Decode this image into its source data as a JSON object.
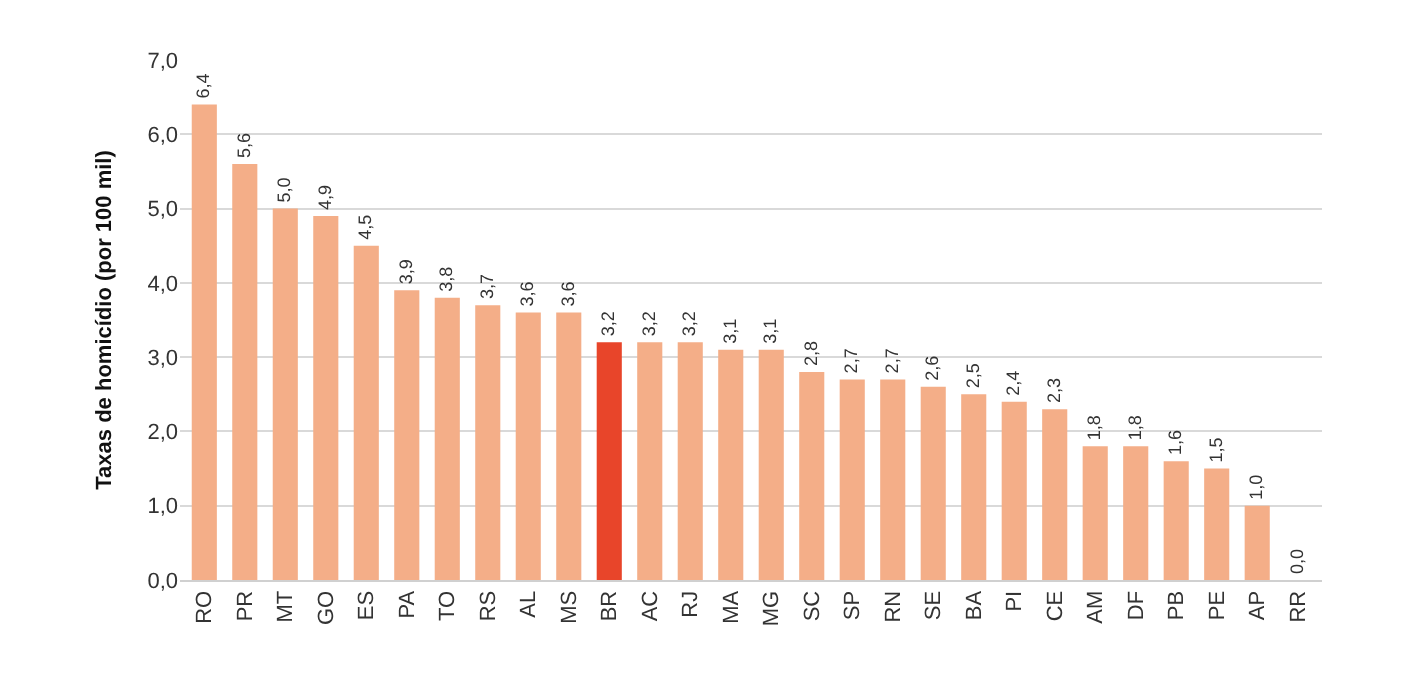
{
  "chart_data": {
    "type": "bar",
    "ylabel": "Taxas de homicídio (por 100 mil)",
    "categories": [
      "RO",
      "PR",
      "MT",
      "GO",
      "ES",
      "PA",
      "TO",
      "RS",
      "AL",
      "MS",
      "BR",
      "AC",
      "RJ",
      "MA",
      "MG",
      "SC",
      "SP",
      "RN",
      "SE",
      "BA",
      "PI",
      "CE",
      "AM",
      "DF",
      "PB",
      "PE",
      "AP",
      "RR"
    ],
    "values": [
      6.4,
      5.6,
      5.0,
      4.9,
      4.5,
      3.9,
      3.8,
      3.7,
      3.6,
      3.6,
      3.2,
      3.2,
      3.2,
      3.1,
      3.1,
      2.8,
      2.7,
      2.7,
      2.6,
      2.5,
      2.4,
      2.3,
      1.8,
      1.8,
      1.6,
      1.5,
      1.0,
      0.0
    ],
    "value_labels": [
      "6,4",
      "5,6",
      "5,0",
      "4,9",
      "4,5",
      "3,9",
      "3,8",
      "3,7",
      "3,6",
      "3,6",
      "3,2",
      "3,2",
      "3,2",
      "3,1",
      "3,1",
      "2,8",
      "2,7",
      "2,7",
      "2,6",
      "2,5",
      "2,4",
      "2,3",
      "1,8",
      "1,8",
      "1,6",
      "1,5",
      "1,0",
      "0,0"
    ],
    "colors": [
      "#f4ae88",
      "#f4ae88",
      "#f4ae88",
      "#f4ae88",
      "#f4ae88",
      "#f4ae88",
      "#f4ae88",
      "#f4ae88",
      "#f4ae88",
      "#f4ae88",
      "#e8452a",
      "#f4ae88",
      "#f4ae88",
      "#f4ae88",
      "#f4ae88",
      "#f4ae88",
      "#f4ae88",
      "#f4ae88",
      "#f4ae88",
      "#f4ae88",
      "#f4ae88",
      "#f4ae88",
      "#f4ae88",
      "#f4ae88",
      "#f4ae88",
      "#f4ae88",
      "#f4ae88",
      "#f4ae88"
    ],
    "ylim": [
      0,
      7
    ],
    "yticks": [
      {
        "value": 0,
        "label": "0,0"
      },
      {
        "value": 1,
        "label": "1,0"
      },
      {
        "value": 2,
        "label": "2,0"
      },
      {
        "value": 3,
        "label": "3,0"
      },
      {
        "value": 4,
        "label": "4,0"
      },
      {
        "value": 5,
        "label": "5,0"
      },
      {
        "value": 6,
        "label": "6,0"
      },
      {
        "value": 7,
        "label": "7,0"
      }
    ],
    "grid": "y",
    "legend": false
  }
}
